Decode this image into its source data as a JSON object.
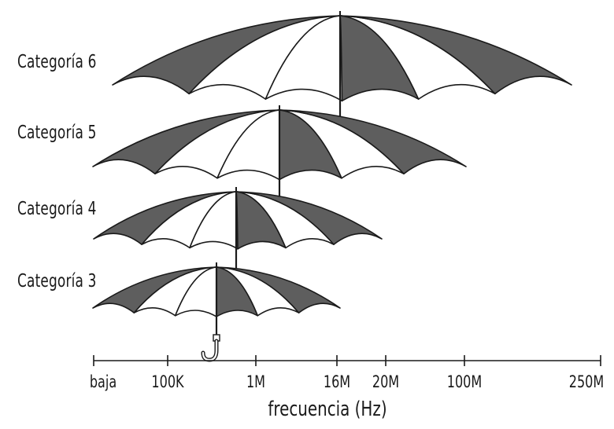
{
  "categories": [
    {
      "label": "Categoría 6",
      "upper_frequency": "250M"
    },
    {
      "label": "Categoría 5",
      "upper_frequency": "100M"
    },
    {
      "label": "Categoría 4",
      "upper_frequency": "20M"
    },
    {
      "label": "Categoría 3",
      "upper_frequency": "16M"
    }
  ],
  "axis": {
    "ticks": [
      "baja",
      "100K",
      "1M",
      "16M",
      "20M",
      "100M",
      "250M"
    ],
    "title": "frecuencia (Hz)"
  },
  "colors": {
    "dark_panel": "#5e5e5e",
    "light_panel": "#ffffff",
    "outline": "#1a1a1a"
  }
}
